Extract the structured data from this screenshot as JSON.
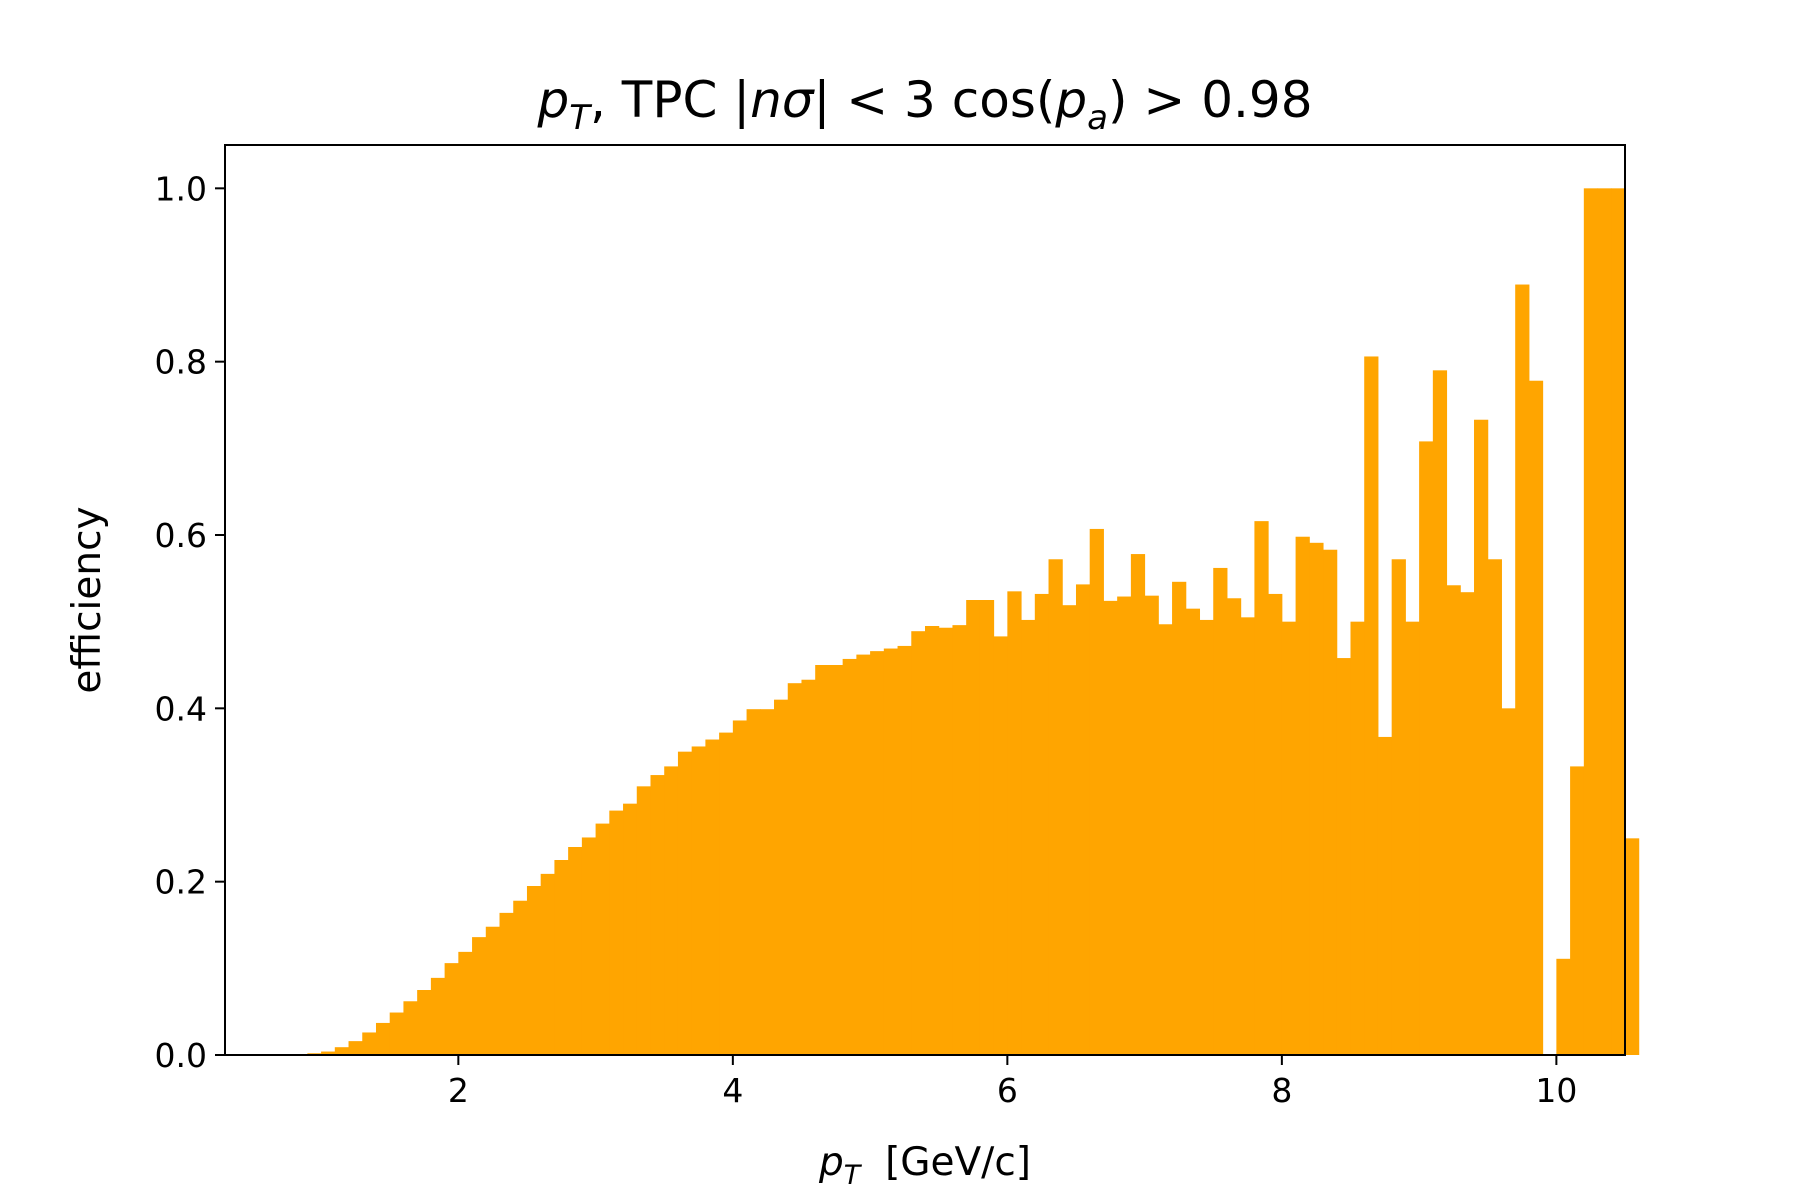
{
  "chart_data": {
    "type": "bar",
    "title": "p_T, TPC |nσ| < 3  cos(p_a) > 0.98",
    "title_parts": {
      "p": "p",
      "sub_T": "T",
      "mid": ", TPC |",
      "nsigma": "nσ",
      "mid2": "| < 3  cos(",
      "p2": "p",
      "sub_a": "a",
      "end": ") > 0.98"
    },
    "xlabel": "p_T  [GeV/c]",
    "xlabel_parts": {
      "p": "p",
      "sub": "T",
      "unit": "  [GeV/c]"
    },
    "ylabel": "efficiency",
    "xlim": [
      0.3,
      10.5
    ],
    "ylim": [
      0.0,
      1.05
    ],
    "xticks": [
      2,
      4,
      6,
      8,
      10
    ],
    "xtick_labels": [
      "2",
      "4",
      "6",
      "8",
      "10"
    ],
    "yticks": [
      0.0,
      0.2,
      0.4,
      0.6,
      0.8,
      1.0
    ],
    "ytick_labels": [
      "0.0",
      "0.2",
      "0.4",
      "0.6",
      "0.8",
      "1.0"
    ],
    "grid": false,
    "bar_color": "#FFA500",
    "bin_start": 0.9,
    "bin_width": 0.1,
    "values": [
      0.002,
      0.004,
      0.009,
      0.016,
      0.026,
      0.037,
      0.049,
      0.062,
      0.075,
      0.089,
      0.106,
      0.119,
      0.136,
      0.148,
      0.164,
      0.178,
      0.195,
      0.209,
      0.225,
      0.24,
      0.251,
      0.267,
      0.282,
      0.29,
      0.31,
      0.323,
      0.333,
      0.35,
      0.356,
      0.364,
      0.372,
      0.386,
      0.399,
      0.399,
      0.41,
      0.429,
      0.433,
      0.45,
      0.45,
      0.457,
      0.462,
      0.466,
      0.469,
      0.472,
      0.489,
      0.495,
      0.493,
      0.496,
      0.525,
      0.525,
      0.483,
      0.535,
      0.502,
      0.532,
      0.572,
      0.519,
      0.543,
      0.607,
      0.524,
      0.529,
      0.578,
      0.53,
      0.497,
      0.546,
      0.515,
      0.502,
      0.562,
      0.527,
      0.505,
      0.616,
      0.532,
      0.5,
      0.598,
      0.591,
      0.583,
      0.458,
      0.5,
      0.806,
      0.367,
      0.572,
      0.5,
      0.708,
      0.79,
      0.542,
      0.534,
      0.733,
      0.572,
      0.4,
      0.889,
      0.778,
      0.0,
      0.111,
      0.333,
      1.0,
      1.0,
      1.0,
      0.25
    ]
  }
}
